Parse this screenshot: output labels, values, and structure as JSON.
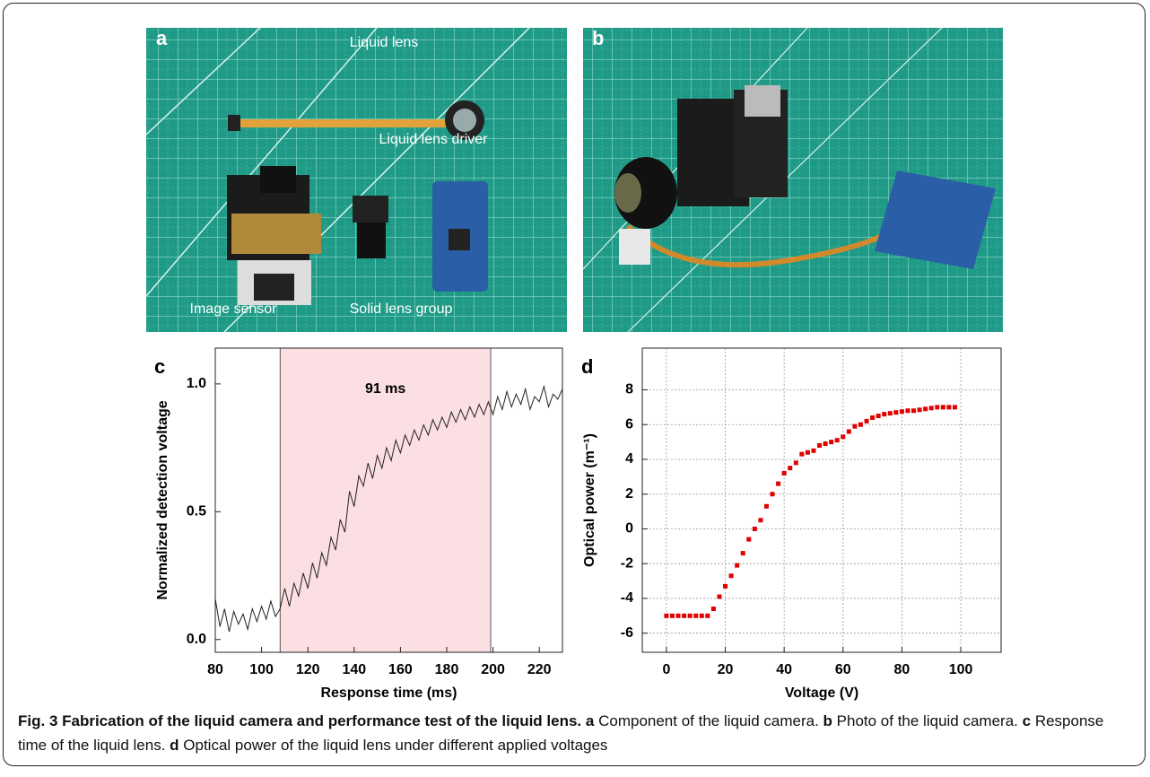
{
  "panels": {
    "a": {
      "letter": "a",
      "labels": [
        "Liquid lens",
        "Liquid lens driver",
        "Image sensor",
        "Solid lens group"
      ]
    },
    "b": {
      "letter": "b"
    }
  },
  "chart_data": [
    {
      "type": "line",
      "panel": "c",
      "xlabel": "Response time (ms)",
      "ylabel": "Normalized detection voltage",
      "x": [
        80,
        82,
        84,
        86,
        88,
        90,
        92,
        94,
        96,
        98,
        100,
        102,
        104,
        106,
        108,
        110,
        112,
        114,
        116,
        118,
        120,
        122,
        124,
        126,
        128,
        130,
        132,
        134,
        136,
        138,
        140,
        142,
        144,
        146,
        148,
        150,
        152,
        154,
        156,
        158,
        160,
        162,
        164,
        166,
        168,
        170,
        172,
        174,
        176,
        178,
        180,
        182,
        184,
        186,
        188,
        190,
        192,
        194,
        196,
        198,
        200,
        202,
        204,
        206,
        208,
        210,
        212,
        214,
        216,
        218,
        220,
        222,
        224,
        226,
        228,
        230
      ],
      "series": [
        {
          "color": "#222222",
          "values": [
            0.16,
            0.05,
            0.12,
            0.03,
            0.11,
            0.06,
            0.1,
            0.04,
            0.12,
            0.07,
            0.13,
            0.08,
            0.15,
            0.09,
            0.12,
            0.2,
            0.13,
            0.22,
            0.17,
            0.26,
            0.2,
            0.3,
            0.24,
            0.34,
            0.29,
            0.4,
            0.35,
            0.47,
            0.42,
            0.58,
            0.52,
            0.64,
            0.6,
            0.69,
            0.63,
            0.72,
            0.67,
            0.75,
            0.7,
            0.78,
            0.73,
            0.8,
            0.76,
            0.82,
            0.78,
            0.84,
            0.8,
            0.86,
            0.82,
            0.87,
            0.83,
            0.89,
            0.85,
            0.9,
            0.86,
            0.91,
            0.87,
            0.92,
            0.88,
            0.93,
            0.88,
            0.95,
            0.9,
            0.97,
            0.91,
            0.96,
            0.92,
            0.98,
            0.9,
            0.95,
            0.93,
            0.99,
            0.91,
            0.96,
            0.94,
            0.98
          ]
        }
      ],
      "span": {
        "x": [
          108,
          199
        ],
        "label": "91 ms",
        "color": "#fbdfe2"
      },
      "xlim": [
        80,
        230
      ],
      "xticks": [
        80,
        100,
        120,
        140,
        160,
        180,
        200,
        220
      ],
      "ylim": [
        -0.05,
        1.14
      ],
      "yticks": [
        {
          "value": 0,
          "label": "0.0"
        },
        {
          "value": 0.5,
          "label": "0.5"
        },
        {
          "value": 1,
          "label": "1.0"
        }
      ],
      "grid": false
    },
    {
      "type": "scatter",
      "panel": "d",
      "xlabel": "Voltage (V)",
      "ylabel": "Optical power (m⁻¹)",
      "x": [
        0,
        2,
        4,
        6,
        8,
        10,
        12,
        14,
        16,
        18,
        20,
        22,
        24,
        26,
        28,
        30,
        32,
        34,
        36,
        38,
        40,
        42,
        44,
        46,
        48,
        50,
        52,
        54,
        56,
        58,
        60,
        62,
        64,
        66,
        68,
        70,
        72,
        74,
        76,
        78,
        80,
        82,
        84,
        86,
        88,
        90,
        92,
        94,
        96,
        98
      ],
      "series": [
        {
          "color": "#e00000",
          "values": [
            -5,
            -5,
            -5,
            -5,
            -5,
            -5,
            -5,
            -5,
            -4.6,
            -3.9,
            -3.3,
            -2.7,
            -2.1,
            -1.4,
            -0.6,
            0,
            0.5,
            1.3,
            2,
            2.6,
            3.2,
            3.5,
            3.8,
            4.3,
            4.4,
            4.5,
            4.8,
            4.9,
            5,
            5.1,
            5.3,
            5.6,
            5.9,
            6,
            6.2,
            6.4,
            6.5,
            6.6,
            6.65,
            6.7,
            6.75,
            6.8,
            6.8,
            6.85,
            6.9,
            6.95,
            7,
            7,
            7,
            7
          ]
        }
      ],
      "xlim": [
        -8.2,
        113.7
      ],
      "xticks": [
        0,
        20,
        40,
        60,
        80,
        100
      ],
      "ylim": [
        -7.1,
        10.4
      ],
      "yticks": [
        -6,
        -4,
        -2,
        0,
        2,
        4,
        6,
        8
      ],
      "grid": true
    }
  ],
  "caption": {
    "title": "Fig. 3 Fabrication of the liquid camera and performance test of the liquid lens.",
    "parts": [
      {
        "letter": "a",
        "text": "Component of the liquid camera."
      },
      {
        "letter": "b",
        "text": "Photo of the liquid camera."
      },
      {
        "letter": "c",
        "text": "Response time of the liquid lens."
      },
      {
        "letter": "d",
        "text": "Optical power of the liquid lens under different applied voltages"
      }
    ]
  }
}
